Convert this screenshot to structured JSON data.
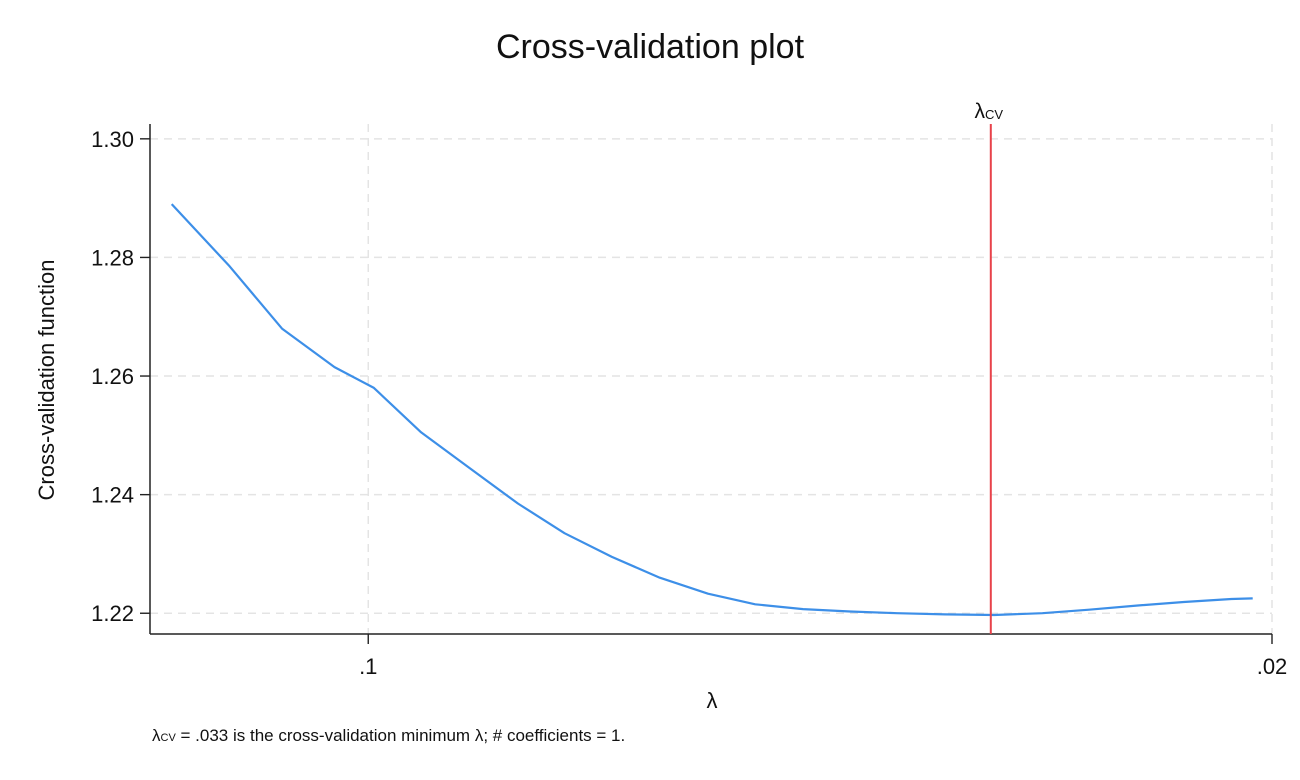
{
  "chart_data": {
    "type": "line",
    "title": "Cross-validation plot",
    "xlabel": "λ",
    "ylabel": "Cross-validation function",
    "x_scale": "log-reversed",
    "xlim": [
      0.1475,
      0.02
    ],
    "ylim": [
      1.2165,
      1.3025
    ],
    "x_ticks": [
      {
        "value": 0.1,
        "label": ".1"
      },
      {
        "value": 0.02,
        "label": ".02"
      }
    ],
    "y_ticks": [
      {
        "value": 1.22,
        "label": "1.22"
      },
      {
        "value": 1.24,
        "label": "1.24"
      },
      {
        "value": 1.26,
        "label": "1.26"
      },
      {
        "value": 1.28,
        "label": "1.28"
      },
      {
        "value": 1.3,
        "label": "1.30"
      }
    ],
    "grid": true,
    "series": [
      {
        "color": "#3d8fe8",
        "x": [
          0.1419,
          0.128,
          0.1166,
          0.1062,
          0.099,
          0.091,
          0.0835,
          0.0766,
          0.0705,
          0.0648,
          0.0595,
          0.0546,
          0.0502,
          0.0461,
          0.0424,
          0.039,
          0.0358,
          0.0328,
          0.0301,
          0.0277,
          0.0254,
          0.0234,
          0.0215,
          0.0207
        ],
        "values": [
          1.289,
          1.2785,
          1.268,
          1.2615,
          1.258,
          1.2505,
          1.2445,
          1.2385,
          1.2335,
          1.2295,
          1.226,
          1.2233,
          1.2215,
          1.2207,
          1.2203,
          1.22,
          1.2198,
          1.2197,
          1.22,
          1.2206,
          1.2213,
          1.2219,
          1.2224,
          1.2225
        ]
      }
    ],
    "reference_line": {
      "x": 0.033,
      "label": "λ",
      "label_sub": "CV",
      "color": "#e8424a"
    },
    "note": {
      "lambda": "λ",
      "sub": "CV",
      "text": " = .033 is the cross-validation minimum λ; # coefficients = 1."
    }
  }
}
